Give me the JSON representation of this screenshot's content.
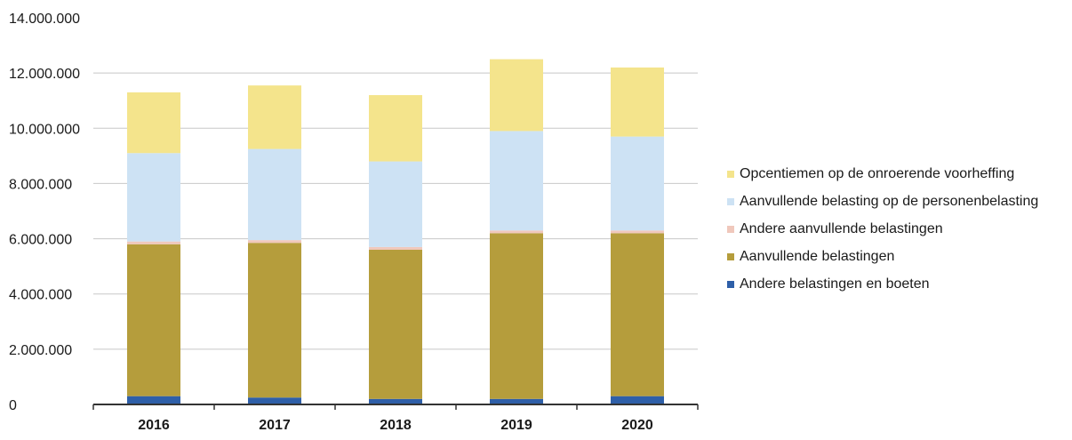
{
  "chart_data": {
    "type": "bar",
    "stacked": true,
    "categories": [
      "2016",
      "2017",
      "2018",
      "2019",
      "2020"
    ],
    "ylim": [
      0,
      14000000
    ],
    "yticks": [
      0,
      2000000,
      4000000,
      6000000,
      8000000,
      10000000,
      12000000,
      14000000
    ],
    "ytick_labels": [
      "0",
      "2.000.000",
      "4.000.000",
      "6.000.000",
      "8.000.000",
      "10.000.000",
      "12.000.000",
      "14.000.000"
    ],
    "grid": true,
    "legend_position": "right",
    "series": [
      {
        "name": "Andere belastingen en boeten",
        "color": "#2e5fa8",
        "values": [
          300000,
          250000,
          200000,
          200000,
          300000
        ]
      },
      {
        "name": "Aanvullende belastingen",
        "color": "#b59d3c",
        "values": [
          5500000,
          5600000,
          5400000,
          6000000,
          5900000
        ]
      },
      {
        "name": "Andere aanvullende belastingen",
        "color": "#f0c8bc",
        "values": [
          100000,
          100000,
          100000,
          100000,
          100000
        ]
      },
      {
        "name": "Aanvullende belasting op de personenbelasting",
        "color": "#cde2f4",
        "values": [
          3200000,
          3300000,
          3100000,
          3600000,
          3400000
        ]
      },
      {
        "name": "Opcentiemen op de onroerende voorheffing",
        "color": "#f4e48c",
        "values": [
          2200000,
          2300000,
          2400000,
          2600000,
          2500000
        ]
      }
    ]
  },
  "legend_order": [
    4,
    3,
    2,
    1,
    0
  ]
}
